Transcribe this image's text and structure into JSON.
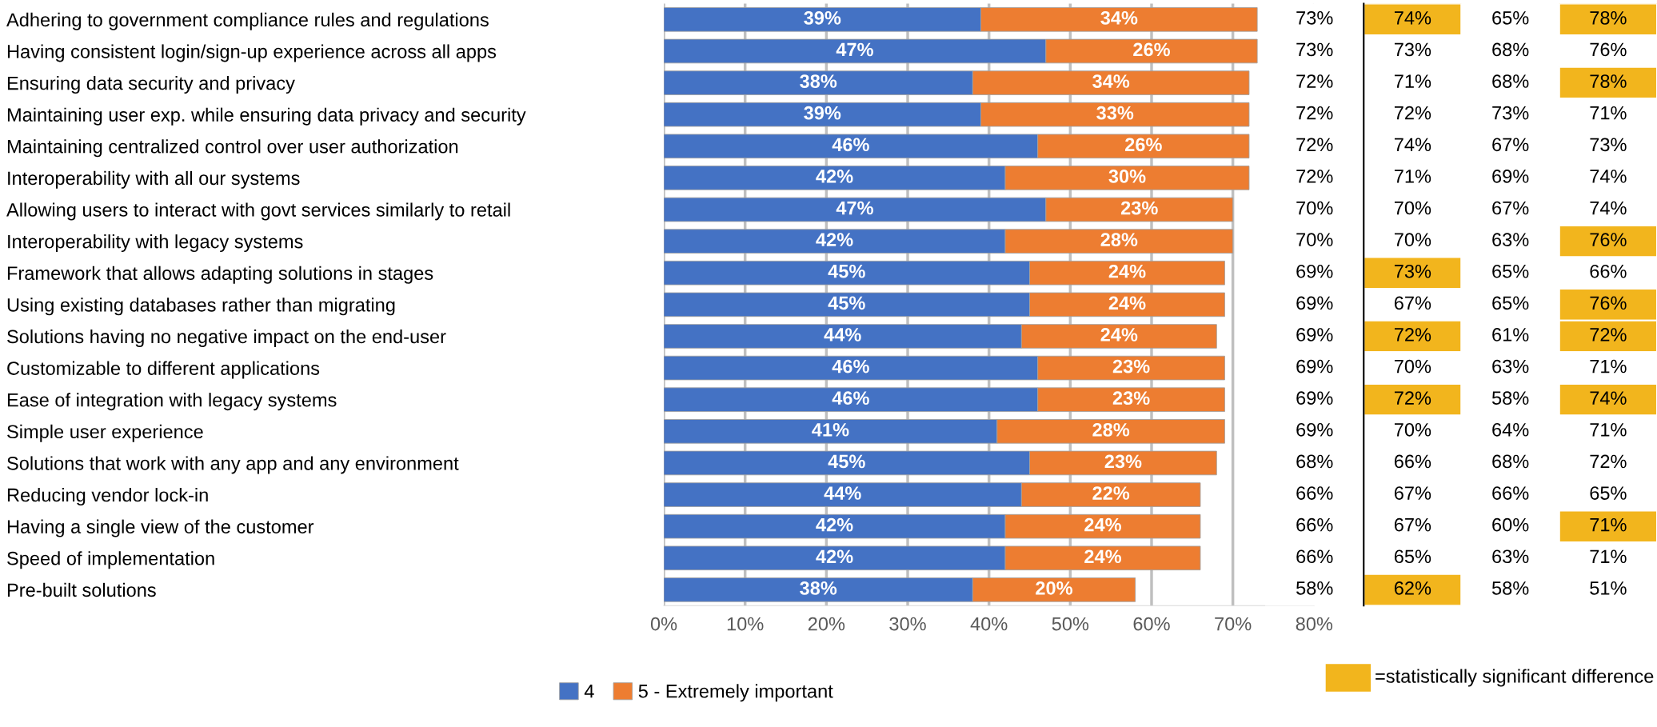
{
  "chart_data": [
    {
      "type": "bar",
      "orientation": "horizontal",
      "stacked": true,
      "categories": [
        "Adhering to government compliance rules and regulations",
        "Having consistent login/sign-up experience across all apps",
        "Ensuring data security and privacy",
        "Maintaining user exp. while ensuring data privacy and security",
        "Maintaining centralized control over user authorization",
        "Interoperability with all our systems",
        "Allowing users to interact with govt services similarly to retail",
        "Interoperability with legacy systems",
        "Framework that allows adapting solutions in stages",
        "Using existing databases rather than migrating",
        "Solutions having no negative impact on the end-user",
        "Customizable to different applications",
        "Ease of integration with legacy systems",
        "Simple user experience",
        "Solutions that work with any app and any environment",
        "Reducing vendor lock-in",
        "Having a single view of the customer",
        "Speed of implementation",
        "Pre-built solutions"
      ],
      "series": [
        {
          "name": "4",
          "color": "#4472c4",
          "values": [
            39,
            47,
            38,
            39,
            46,
            42,
            47,
            42,
            45,
            45,
            44,
            46,
            46,
            41,
            45,
            44,
            42,
            42,
            38
          ],
          "value_labels": [
            "39%",
            "47%",
            "38%",
            "39%",
            "46%",
            "42%",
            "47%",
            "42%",
            "45%",
            "45%",
            "44%",
            "46%",
            "46%",
            "41%",
            "45%",
            "44%",
            "42%",
            "42%",
            "38%"
          ]
        },
        {
          "name": "5 - Extremely important",
          "color": "#ed7d31",
          "values": [
            34,
            26,
            34,
            33,
            26,
            30,
            23,
            28,
            24,
            24,
            24,
            23,
            23,
            28,
            23,
            22,
            24,
            24,
            20
          ],
          "value_labels": [
            "34%",
            "26%",
            "34%",
            "33%",
            "26%",
            "30%",
            "23%",
            "28%",
            "24%",
            "24%",
            "24%",
            "23%",
            "23%",
            "28%",
            "23%",
            "22%",
            "24%",
            "24%",
            "20%"
          ]
        }
      ],
      "xlim": [
        0,
        80
      ],
      "xticks": [
        {
          "value": 0,
          "label": "0%"
        },
        {
          "value": 10,
          "label": "10%"
        },
        {
          "value": 20,
          "label": "20%"
        },
        {
          "value": 30,
          "label": "30%"
        },
        {
          "value": 40,
          "label": "40%"
        },
        {
          "value": 50,
          "label": "50%"
        },
        {
          "value": 60,
          "label": "60%"
        },
        {
          "value": 70,
          "label": "70%"
        },
        {
          "value": 80,
          "label": "80%"
        }
      ],
      "grid": "x",
      "legend": "bottom"
    },
    {
      "type": "heatmap",
      "categories": [
        null
      ],
      "y_categories": [
        null,
        null,
        null,
        null,
        null,
        null,
        null,
        null,
        null,
        null,
        null,
        null,
        null,
        null,
        null,
        null,
        null,
        null,
        null
      ],
      "cells": [
        [
          73
        ],
        [
          73
        ],
        [
          72
        ],
        [
          72
        ],
        [
          72
        ],
        [
          72
        ],
        [
          70
        ],
        [
          70
        ],
        [
          69
        ],
        [
          69
        ],
        [
          69
        ],
        [
          69
        ],
        [
          69
        ],
        [
          69
        ],
        [
          68
        ],
        [
          66
        ],
        [
          66
        ],
        [
          66
        ],
        [
          58
        ]
      ],
      "cell_labels": [
        [
          "73%"
        ],
        [
          "73%"
        ],
        [
          "72%"
        ],
        [
          "72%"
        ],
        [
          "72%"
        ],
        [
          "72%"
        ],
        [
          "70%"
        ],
        [
          "70%"
        ],
        [
          "69%"
        ],
        [
          "69%"
        ],
        [
          "69%"
        ],
        [
          "69%"
        ],
        [
          "69%"
        ],
        [
          "69%"
        ],
        [
          "68%"
        ],
        [
          "66%"
        ],
        [
          "66%"
        ],
        [
          "66%"
        ],
        [
          "58%"
        ]
      ]
    },
    {
      "type": "heatmap",
      "categories": [
        null,
        null,
        null
      ],
      "y_categories": [
        null,
        null,
        null,
        null,
        null,
        null,
        null,
        null,
        null,
        null,
        null,
        null,
        null,
        null,
        null,
        null,
        null,
        null,
        null
      ],
      "cells": [
        [
          74,
          65,
          78
        ],
        [
          73,
          68,
          76
        ],
        [
          71,
          68,
          78
        ],
        [
          72,
          73,
          71
        ],
        [
          74,
          67,
          73
        ],
        [
          71,
          69,
          74
        ],
        [
          70,
          67,
          74
        ],
        [
          70,
          63,
          76
        ],
        [
          73,
          65,
          66
        ],
        [
          67,
          65,
          76
        ],
        [
          72,
          61,
          72
        ],
        [
          70,
          63,
          71
        ],
        [
          72,
          58,
          74
        ],
        [
          70,
          64,
          71
        ],
        [
          66,
          68,
          72
        ],
        [
          67,
          66,
          65
        ],
        [
          67,
          60,
          71
        ],
        [
          65,
          63,
          71
        ],
        [
          62,
          58,
          51
        ]
      ],
      "cell_labels": [
        [
          "74%",
          "65%",
          "78%"
        ],
        [
          "73%",
          "68%",
          "76%"
        ],
        [
          "71%",
          "68%",
          "78%"
        ],
        [
          "72%",
          "73%",
          "71%"
        ],
        [
          "74%",
          "67%",
          "73%"
        ],
        [
          "71%",
          "69%",
          "74%"
        ],
        [
          "70%",
          "67%",
          "74%"
        ],
        [
          "70%",
          "63%",
          "76%"
        ],
        [
          "73%",
          "65%",
          "66%"
        ],
        [
          "67%",
          "65%",
          "76%"
        ],
        [
          "72%",
          "61%",
          "72%"
        ],
        [
          "70%",
          "63%",
          "71%"
        ],
        [
          "72%",
          "58%",
          "74%"
        ],
        [
          "70%",
          "64%",
          "71%"
        ],
        [
          "66%",
          "68%",
          "72%"
        ],
        [
          "67%",
          "66%",
          "65%"
        ],
        [
          "67%",
          "60%",
          "71%"
        ],
        [
          "65%",
          "63%",
          "71%"
        ],
        [
          "62%",
          "58%",
          "51%"
        ]
      ],
      "colors": [
        [
          "#f2b51d",
          null,
          "#f2b51d"
        ],
        [
          null,
          null,
          null
        ],
        [
          null,
          null,
          "#f2b51d"
        ],
        [
          null,
          null,
          null
        ],
        [
          null,
          null,
          null
        ],
        [
          null,
          null,
          null
        ],
        [
          null,
          null,
          null
        ],
        [
          null,
          null,
          "#f2b51d"
        ],
        [
          "#f2b51d",
          null,
          null
        ],
        [
          null,
          null,
          "#f2b51d"
        ],
        [
          "#f2b51d",
          null,
          "#f2b51d"
        ],
        [
          null,
          null,
          null
        ],
        [
          "#f2b51d",
          null,
          "#f2b51d"
        ],
        [
          null,
          null,
          null
        ],
        [
          null,
          null,
          null
        ],
        [
          null,
          null,
          null
        ],
        [
          null,
          null,
          "#f2b51d"
        ],
        [
          null,
          null,
          null
        ],
        [
          "#f2b51d",
          null,
          null
        ]
      ],
      "annotations": [
        "=statistically significant difference"
      ]
    }
  ]
}
